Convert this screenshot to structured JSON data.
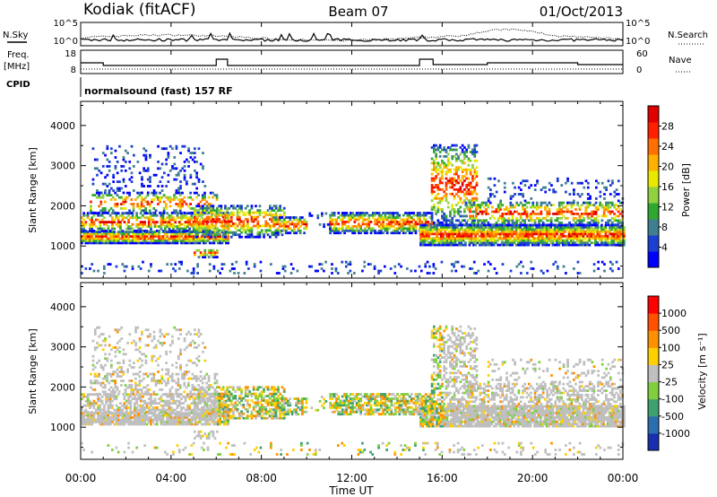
{
  "header": {
    "station": "Kodiak (fitACF)",
    "beam": "Beam 07",
    "date": "01/Oct/2013"
  },
  "left_labels": {
    "nsky": "N.Sky",
    "freq_line1": "Freq.",
    "freq_line2": "[MHz]",
    "cpid": "CPID"
  },
  "right_labels": {
    "nsearch": "N.Search",
    "nave": "Nave"
  },
  "noise_panel": {
    "left_ticks": [
      "10^5",
      "10^0"
    ],
    "right_ticks": [
      "10^5",
      "10^0"
    ]
  },
  "freq_panel": {
    "left_ticks": [
      "18",
      "8"
    ],
    "right_ticks": [
      "60",
      "0"
    ]
  },
  "cpid_panel": {
    "text": "normalsound (fast) 157 RF"
  },
  "chart_data": [
    {
      "type": "heatmap",
      "name": "power",
      "ylabel": "Slant Range [km]",
      "yticks": [
        "4000",
        "3000",
        "2000",
        "1000"
      ],
      "ylim": [
        200,
        4600
      ],
      "colorbar": {
        "title": "Power [dB]",
        "labels": [
          "28",
          "24",
          "20",
          "16",
          "12",
          "8",
          "4"
        ],
        "colors": [
          "#0000ff",
          "#1a3fd1",
          "#3f7f8f",
          "#2fa82f",
          "#8fd13f",
          "#e8e800",
          "#ffb000",
          "#ff7000",
          "#ff2000",
          "#e00000"
        ]
      }
    },
    {
      "type": "heatmap",
      "name": "velocity",
      "ylabel": "Slant Range [km]",
      "yticks": [
        "4000",
        "3000",
        "2000",
        "1000"
      ],
      "ylim": [
        200,
        4600
      ],
      "colorbar": {
        "title": "Velocity [m s⁻¹]",
        "labels": [
          "1000",
          "500",
          "100",
          "25",
          "-25",
          "-100",
          "-500",
          "-1000"
        ],
        "colors": [
          "#1a2fb0",
          "#2a70b0",
          "#3fa06f",
          "#7fcf3f",
          "#bfbfbf",
          "#ffd000",
          "#ff9000",
          "#ff5000",
          "#ff0000"
        ]
      }
    }
  ],
  "time_axis": {
    "label": "Time UT",
    "ticks": [
      "00:00",
      "04:00",
      "08:00",
      "12:00",
      "16:00",
      "20:00",
      "00:00"
    ],
    "xlim": [
      0,
      24
    ]
  },
  "colors": {
    "frame": "#000000",
    "grid_gray": "#c8c8c8"
  }
}
